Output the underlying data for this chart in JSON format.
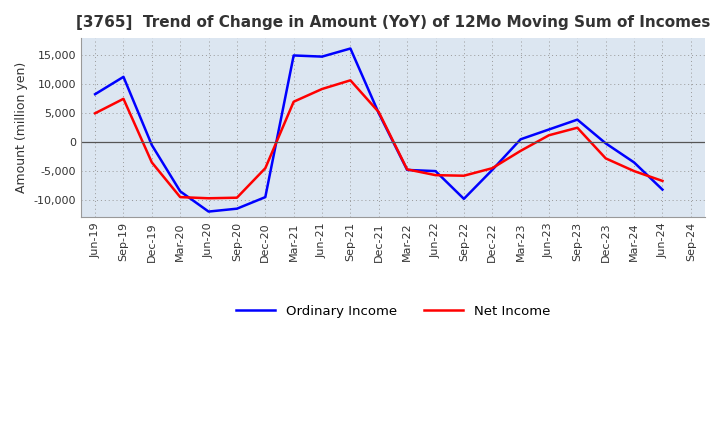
{
  "title": "[3765]  Trend of Change in Amount (YoY) of 12Mo Moving Sum of Incomes",
  "ylabel": "Amount (million yen)",
  "x_labels": [
    "Jun-19",
    "Sep-19",
    "Dec-19",
    "Mar-20",
    "Jun-20",
    "Sep-20",
    "Dec-20",
    "Mar-21",
    "Jun-21",
    "Sep-21",
    "Dec-21",
    "Mar-22",
    "Jun-22",
    "Sep-22",
    "Dec-22",
    "Mar-23",
    "Jun-23",
    "Sep-23",
    "Dec-23",
    "Mar-24",
    "Jun-24",
    "Sep-24"
  ],
  "ordinary_income": [
    8300,
    11300,
    -500,
    -8500,
    -12000,
    -11500,
    -9500,
    15000,
    14800,
    16200,
    5000,
    -4800,
    -5000,
    -9800,
    -4800,
    500,
    2200,
    3900,
    -200,
    -3500,
    -8200,
    null
  ],
  "net_income": [
    5000,
    7500,
    -3500,
    -9500,
    -9700,
    -9600,
    -4500,
    7000,
    9200,
    10700,
    5200,
    -4700,
    -5700,
    -5800,
    -4500,
    -1500,
    1200,
    2500,
    -2800,
    -5000,
    -6700,
    null
  ],
  "ordinary_color": "#0000ff",
  "net_color": "#ff0000",
  "ylim": [
    -13000,
    18000
  ],
  "yticks": [
    -10000,
    -5000,
    0,
    5000,
    10000,
    15000
  ],
  "plot_bg_color": "#dce6f1",
  "fig_bg_color": "#ffffff",
  "grid_color": "#999999",
  "zero_line_color": "#555555",
  "legend_labels": [
    "Ordinary Income",
    "Net Income"
  ],
  "title_fontsize": 11,
  "axis_fontsize": 9,
  "tick_fontsize": 8
}
